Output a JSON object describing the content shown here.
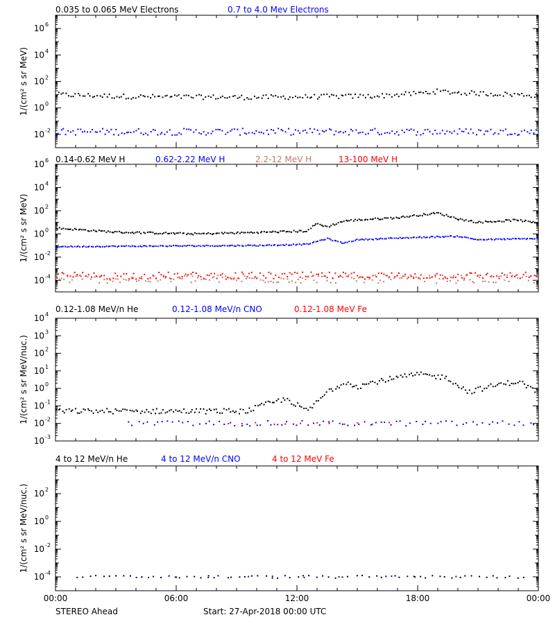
{
  "colors": {
    "black": "#000000",
    "blue": "#0000ff",
    "salmon": "#c87860",
    "red": "#ff0000"
  },
  "footer": {
    "spacecraft": "STEREO Ahead",
    "start": "Start: 27-Apr-2018 00:00 UTC"
  },
  "x_ticks": [
    "00:00",
    "06:00",
    "12:00",
    "18:00",
    "00:00"
  ],
  "chart_data": [
    {
      "type": "scatter",
      "title": "",
      "ylabel": "1/(cm² s sr MeV)",
      "y_scale": "log",
      "ylim_exp": [
        -3,
        7
      ],
      "ytick_exps": [
        -2,
        0,
        2,
        4,
        6
      ],
      "xlim_hours": [
        0,
        24
      ],
      "legend": [
        {
          "label": "0.035 to 0.065 MeV Electrons",
          "color": "black"
        },
        {
          "label": "0.7 to 4.0 Mev Electrons",
          "color": "blue"
        }
      ],
      "series": [
        {
          "name": "0.035 to 0.065 MeV Electrons",
          "color": "black",
          "profile": [
            [
              0,
              1.0
            ],
            [
              4,
              0.85
            ],
            [
              10,
              0.8
            ],
            [
              16,
              0.9
            ],
            [
              18,
              1.1
            ],
            [
              19,
              1.25
            ],
            [
              20,
              1.15
            ],
            [
              24,
              0.95
            ]
          ],
          "jitter": 0.18,
          "density": 200
        },
        {
          "name": "0.7 to 4.0 Mev Electrons",
          "color": "blue",
          "profile": [
            [
              0,
              -1.8
            ],
            [
              24,
              -1.8
            ]
          ],
          "jitter": 0.25,
          "density": 200
        }
      ]
    },
    {
      "type": "scatter",
      "title": "",
      "ylabel": "1/(cm² s sr MeV)",
      "y_scale": "log",
      "ylim_exp": [
        -5,
        6
      ],
      "ytick_exps": [
        -4,
        -2,
        0,
        2,
        4,
        6
      ],
      "xlim_hours": [
        0,
        24
      ],
      "legend": [
        {
          "label": "0.14-0.62 MeV H",
          "color": "black"
        },
        {
          "label": "0.62-2.22 MeV H",
          "color": "blue"
        },
        {
          "label": "2.2-12 MeV H",
          "color": "salmon"
        },
        {
          "label": "13-100 MeV H",
          "color": "red"
        }
      ],
      "series": [
        {
          "name": "0.14-0.62 MeV H",
          "color": "black",
          "profile": [
            [
              0,
              0.5
            ],
            [
              3,
              0.15
            ],
            [
              7,
              0.0
            ],
            [
              10.5,
              0.15
            ],
            [
              12.5,
              0.25
            ],
            [
              13.0,
              0.9
            ],
            [
              13.5,
              0.6
            ],
            [
              14.3,
              1.1
            ],
            [
              15,
              1.2
            ],
            [
              17,
              1.4
            ],
            [
              19,
              1.8
            ],
            [
              20,
              1.3
            ],
            [
              21,
              1.0
            ],
            [
              23,
              1.2
            ],
            [
              24,
              0.9
            ]
          ],
          "jitter": 0.08,
          "density": 260
        },
        {
          "name": "0.62-2.22 MeV H",
          "color": "blue",
          "profile": [
            [
              0,
              -1.1
            ],
            [
              10,
              -1.0
            ],
            [
              12.5,
              -0.9
            ],
            [
              13.5,
              -0.4
            ],
            [
              14.3,
              -0.8
            ],
            [
              15,
              -0.5
            ],
            [
              18,
              -0.3
            ],
            [
              20,
              -0.2
            ],
            [
              21,
              -0.5
            ],
            [
              24,
              -0.4
            ]
          ],
          "jitter": 0.05,
          "density": 260
        },
        {
          "name": "2.2-12 MeV H",
          "color": "salmon",
          "profile": [
            [
              0,
              -3.9
            ],
            [
              24,
              -3.9
            ]
          ],
          "jitter": 0.35,
          "density": 180
        },
        {
          "name": "13-100 MeV H",
          "color": "red",
          "profile": [
            [
              0,
              -3.6
            ],
            [
              24,
              -3.6
            ]
          ],
          "jitter": 0.3,
          "density": 180
        }
      ]
    },
    {
      "type": "scatter",
      "title": "",
      "ylabel": "1/(cm² s sr MeV/nuc.)",
      "y_scale": "log",
      "ylim_exp": [
        -3,
        4
      ],
      "ytick_exps": [
        -3,
        -2,
        -1,
        0,
        1,
        2,
        3,
        4
      ],
      "xlim_hours": [
        0,
        24
      ],
      "legend": [
        {
          "label": "0.12-1.08 MeV/n He",
          "color": "black"
        },
        {
          "label": "0.12-1.08 MeV/n CNO",
          "color": "blue"
        },
        {
          "label": "0.12-1.08 MeV Fe",
          "color": "red"
        }
      ],
      "series": [
        {
          "name": "0.12-1.08 MeV/n He",
          "color": "black",
          "profile": [
            [
              0,
              -1.3
            ],
            [
              9.5,
              -1.3
            ],
            [
              10.5,
              -0.9
            ],
            [
              11.5,
              -0.6
            ],
            [
              12.5,
              -1.3
            ],
            [
              13.0,
              -0.8
            ],
            [
              13.5,
              -0.2
            ],
            [
              14.5,
              0.4
            ],
            [
              15,
              0.1
            ],
            [
              16,
              0.4
            ],
            [
              18,
              0.8
            ],
            [
              19.5,
              0.6
            ],
            [
              20.5,
              -0.2
            ],
            [
              22,
              0.2
            ],
            [
              23,
              0.4
            ],
            [
              24,
              -0.2
            ]
          ],
          "jitter": 0.15,
          "density": 230
        },
        {
          "name": "0.12-1.08 MeV/n CNO",
          "color": "blue",
          "profile": [
            [
              3.5,
              -2.0
            ],
            [
              24,
              -2.0
            ]
          ],
          "jitter": 0.15,
          "density": 80
        },
        {
          "name": "0.12-1.08 MeV Fe",
          "color": "red",
          "profile": [
            [
              8.5,
              -2.0
            ],
            [
              17,
              -2.0
            ]
          ],
          "jitter": 0.05,
          "density": 12
        }
      ]
    },
    {
      "type": "scatter",
      "title": "",
      "ylabel": "1/(cm² s sr MeV/nuc.)",
      "y_scale": "log",
      "ylim_exp": [
        -5,
        4
      ],
      "ytick_exps": [
        -4,
        -2,
        0,
        2
      ],
      "xlim_hours": [
        0,
        24
      ],
      "legend": [
        {
          "label": "4 to 12 MeV/n He",
          "color": "black"
        },
        {
          "label": "4 to 12 MeV/n CNO",
          "color": "blue"
        },
        {
          "label": "4 to 12 MeV Fe",
          "color": "red"
        }
      ],
      "series": [
        {
          "name": "4 to 12 MeV/n He",
          "color": "black",
          "profile": [
            [
              1,
              -4.0
            ],
            [
              23.5,
              -4.0
            ]
          ],
          "jitter": 0.1,
          "density": 70
        },
        {
          "name": "4 to 12 MeV/n CNO",
          "color": "blue",
          "profile": [
            [
              3.5,
              -4.0
            ],
            [
              21,
              -4.0
            ]
          ],
          "jitter": 0.05,
          "density": 10
        }
      ]
    }
  ]
}
